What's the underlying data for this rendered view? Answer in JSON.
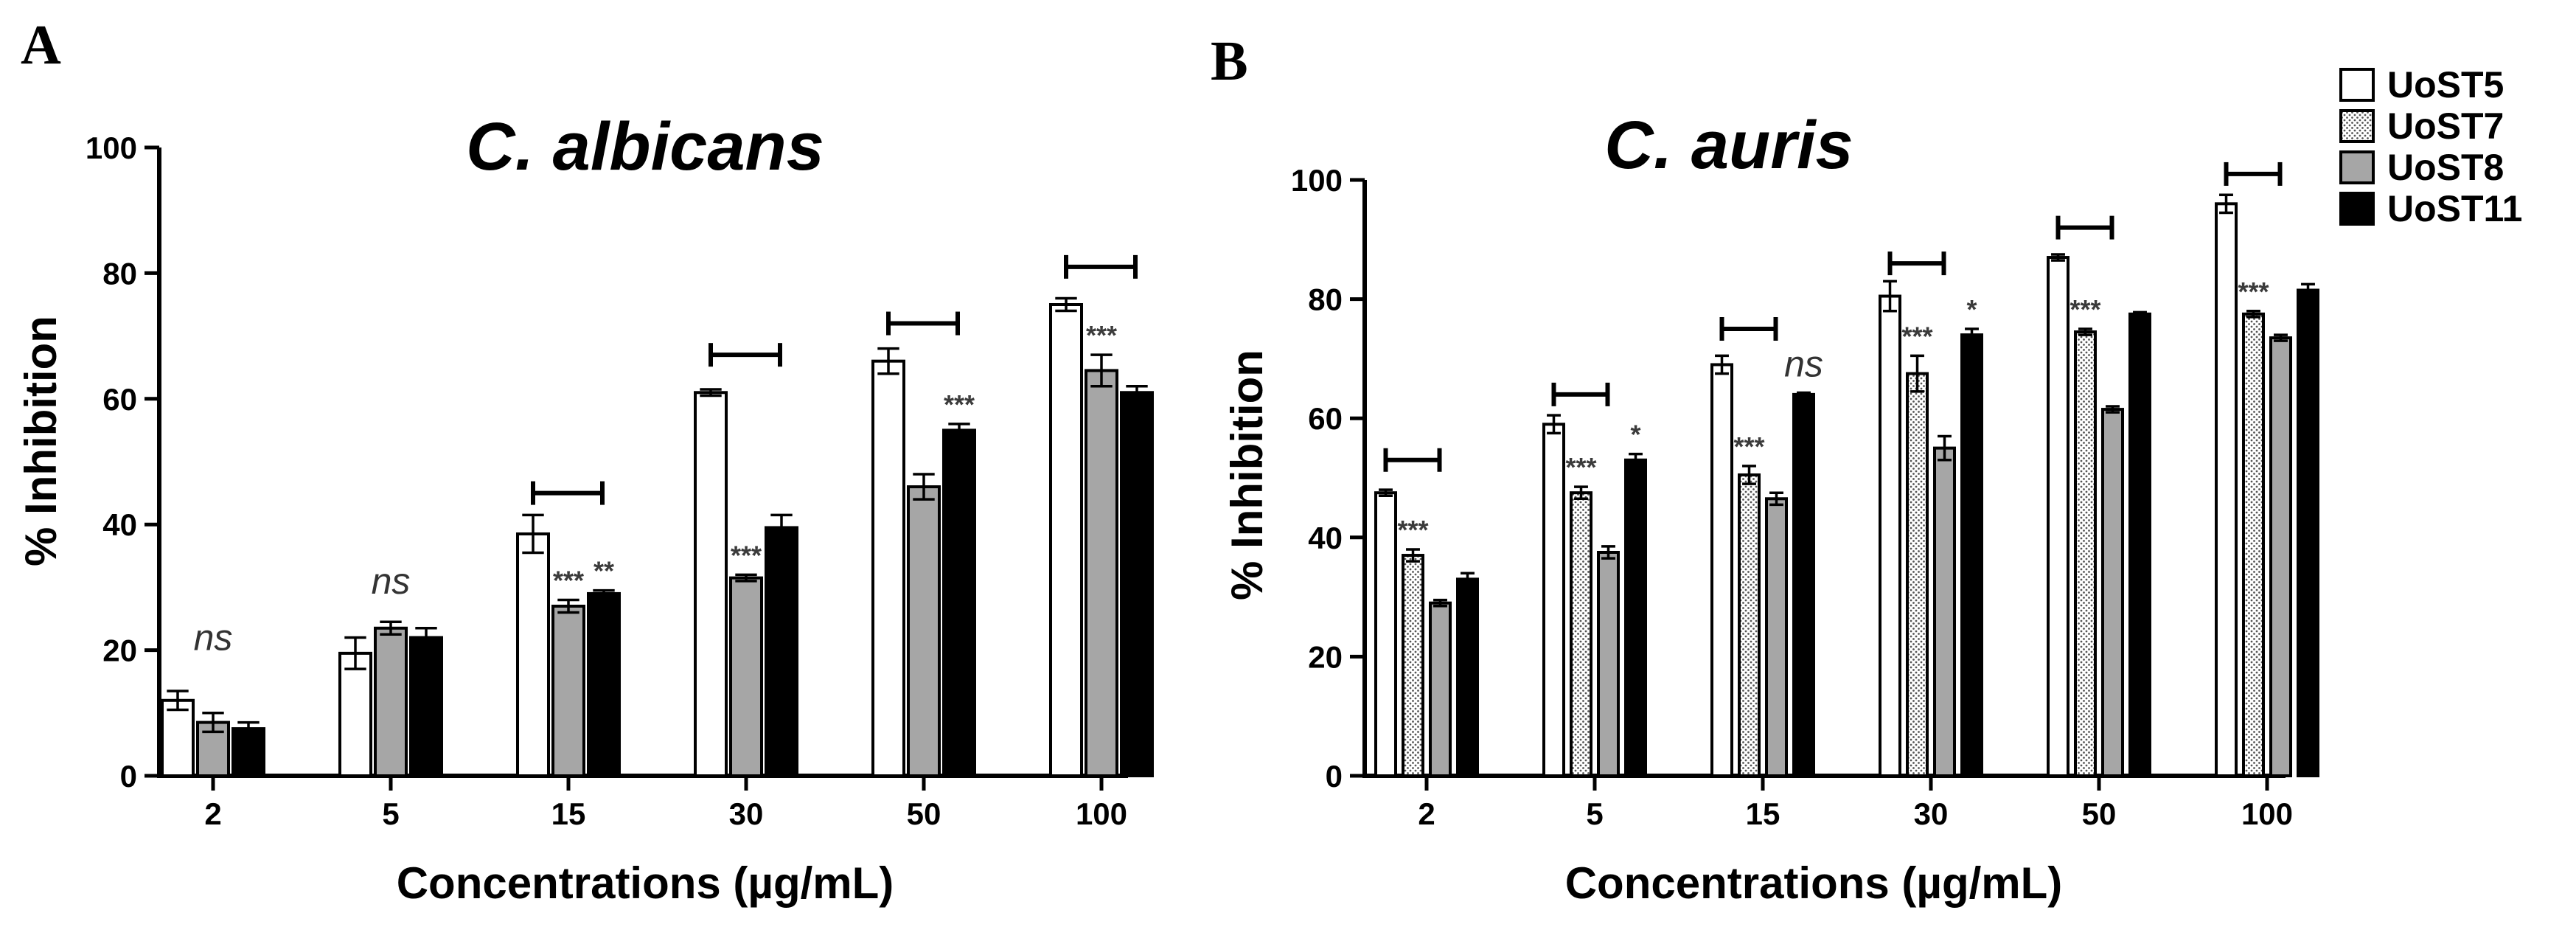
{
  "colors": {
    "UoST5": "#ffffff",
    "UoST7": "#ffffff",
    "UoST8": "#a6a6a6",
    "UoST11": "#000000",
    "stroke": "#000000",
    "stars": "#3b3b3b",
    "dots": "#555555"
  },
  "legend": [
    {
      "name": "UoST5",
      "pattern": "plain"
    },
    {
      "name": "UoST7",
      "pattern": "dotted"
    },
    {
      "name": "UoST8",
      "pattern": "plain"
    },
    {
      "name": "UoST11",
      "pattern": "plain"
    }
  ],
  "chart_data": [
    {
      "panel": "A",
      "type": "bar",
      "title": "C. albicans",
      "xlabel": "Concentrations (µg/mL)",
      "ylabel": "% Inhibition",
      "ylim": [
        0,
        100
      ],
      "yticks": [
        0,
        20,
        40,
        60,
        80,
        100
      ],
      "categories": [
        "2",
        "5",
        "15",
        "30",
        "50",
        "100"
      ],
      "series": [
        {
          "name": "UoST5",
          "values": [
            12,
            19.5,
            38.5,
            61,
            66,
            75
          ],
          "errors": [
            1.5,
            2.5,
            3,
            0.5,
            2,
            1
          ]
        },
        {
          "name": "UoST8",
          "values": [
            8.5,
            23.5,
            27,
            31.5,
            46,
            64.5
          ],
          "errors": [
            1.5,
            1,
            1,
            0.5,
            2,
            2.5
          ]
        },
        {
          "name": "UoST11",
          "values": [
            7.5,
            22,
            29,
            39.5,
            55,
            61
          ],
          "errors": [
            1,
            1.5,
            0.5,
            2,
            1,
            1
          ]
        }
      ],
      "significance": [
        {
          "category": "2",
          "label": "ns",
          "bracket": false,
          "value_y": 20
        },
        {
          "category": "5",
          "label": "ns",
          "bracket": false,
          "value_y": 29
        },
        {
          "category": "15",
          "label": "***",
          "bracket": true,
          "value_y": 45,
          "stars": [
            {
              "series": "UoST8",
              "label": "***"
            },
            {
              "series": "UoST11",
              "label": "**"
            }
          ]
        },
        {
          "category": "30",
          "label": "***",
          "bracket": true,
          "value_y": 67,
          "stars": [
            {
              "series": "UoST8",
              "label": "***"
            }
          ]
        },
        {
          "category": "50",
          "label": "***",
          "bracket": true,
          "value_y": 72,
          "stars": [
            {
              "series": "UoST11",
              "label": "***"
            }
          ]
        },
        {
          "category": "100",
          "label": "***",
          "bracket": true,
          "value_y": 81,
          "stars": [
            {
              "series": "UoST8",
              "label": "***"
            }
          ]
        }
      ]
    },
    {
      "panel": "B",
      "type": "bar",
      "title": "C. auris",
      "xlabel": "Concentrations (µg/mL)",
      "ylabel": "% Inhibition",
      "ylim": [
        0,
        100
      ],
      "yticks": [
        0,
        20,
        40,
        60,
        80,
        100
      ],
      "categories": [
        "2",
        "5",
        "15",
        "30",
        "50",
        "100"
      ],
      "series": [
        {
          "name": "UoST5",
          "values": [
            47.5,
            59,
            69,
            80.5,
            87,
            96
          ],
          "errors": [
            0.5,
            1.5,
            1.5,
            2.5,
            0.5,
            1.5
          ]
        },
        {
          "name": "UoST7",
          "values": [
            37,
            47.5,
            50.5,
            67.5,
            74.5,
            77.5
          ],
          "errors": [
            1,
            1,
            1.5,
            3,
            0.5,
            0.5
          ]
        },
        {
          "name": "UoST8",
          "values": [
            29,
            37.5,
            46.5,
            55,
            61.5,
            73.5
          ],
          "errors": [
            0.5,
            1,
            1,
            2,
            0.5,
            0.5
          ]
        },
        {
          "name": "UoST11",
          "values": [
            33,
            53,
            64,
            74,
            77.5,
            81.5
          ],
          "errors": [
            1,
            1,
            0.3,
            1,
            0.3,
            1
          ]
        }
      ],
      "significance": [
        {
          "category": "2",
          "label": "***",
          "bracket": true,
          "value_y": 53,
          "stars": [
            {
              "series": "UoST7",
              "label": "***"
            }
          ]
        },
        {
          "category": "5",
          "label": "***",
          "bracket": true,
          "value_y": 64,
          "stars": [
            {
              "series": "UoST7",
              "label": "***"
            },
            {
              "series": "UoST11",
              "label": "*"
            }
          ]
        },
        {
          "category": "15",
          "label": "***",
          "bracket": true,
          "value_y": 75,
          "stars": [
            {
              "series": "UoST7",
              "label": "***"
            }
          ]
        },
        {
          "category": "15",
          "label": "ns",
          "bracket": false,
          "value_y": 67
        },
        {
          "category": "30",
          "label": "***",
          "bracket": true,
          "value_y": 86,
          "stars": [
            {
              "series": "UoST7",
              "label": "***"
            },
            {
              "series": "UoST11",
              "label": "*"
            }
          ]
        },
        {
          "category": "50",
          "label": "***",
          "bracket": true,
          "value_y": 92,
          "stars": [
            {
              "series": "UoST7",
              "label": "***"
            }
          ]
        },
        {
          "category": "100",
          "label": "***",
          "bracket": true,
          "value_y": 101,
          "stars": [
            {
              "series": "UoST7",
              "label": "***"
            }
          ]
        }
      ]
    }
  ]
}
